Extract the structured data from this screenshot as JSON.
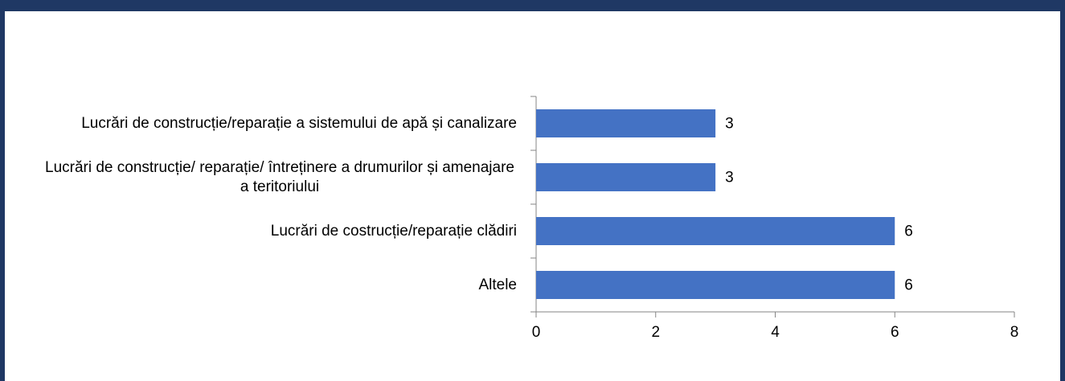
{
  "chart_data": {
    "type": "bar",
    "orientation": "horizontal",
    "categories": [
      "Lucrări de construcție/reparație a sistemului de apă și canalizare",
      "Lucrări de construcție/ reparație/ întreținere a drumurilor și amenajare a teritoriului",
      "Lucrări de costrucție/reparație clădiri",
      "Altele"
    ],
    "values": [
      3,
      3,
      6,
      6
    ],
    "color": "#4472c4",
    "xlim": [
      0,
      8
    ],
    "xticks": [
      0,
      2,
      4,
      6,
      8
    ],
    "grid": false,
    "data_labels": true
  }
}
